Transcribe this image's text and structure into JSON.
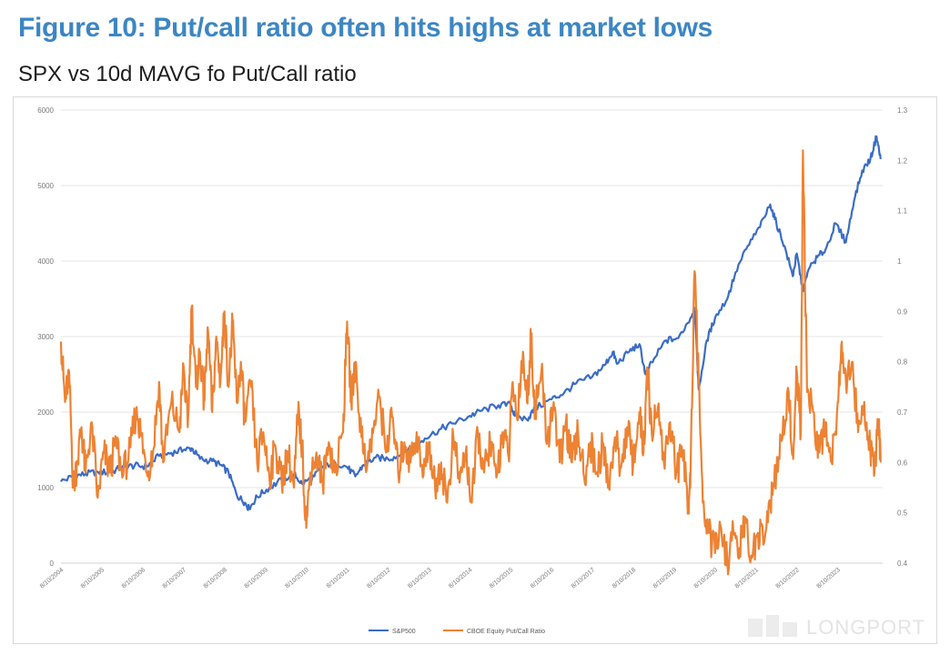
{
  "figure": {
    "title": "Figure 10: Put/call ratio often hits highs at market lows",
    "subtitle": "SPX vs 10d MAVG fo Put/Call ratio"
  },
  "watermark": {
    "text": "LONGPORT"
  },
  "chart_data": {
    "type": "line",
    "title": "",
    "grid": true,
    "legend_position": "bottom",
    "y_left": {
      "min": 0,
      "max": 6000,
      "ticks": [
        0,
        1000,
        2000,
        3000,
        4000,
        5000,
        6000
      ]
    },
    "y_right": {
      "min": 0.4,
      "max": 1.3,
      "ticks": [
        "0.4",
        "0.5",
        "0.6",
        "0.7",
        "0.8",
        "0.9",
        "1",
        "1.1",
        "1.2",
        "1.3"
      ]
    },
    "x_ticks": [
      "8/10/2004",
      "8/10/2005",
      "8/10/2006",
      "8/10/2007",
      "8/10/2008",
      "8/10/2009",
      "8/10/2010",
      "8/10/2011",
      "8/10/2012",
      "8/10/2013",
      "8/10/2014",
      "8/10/2015",
      "8/10/2016",
      "8/10/2017",
      "8/10/2018",
      "8/10/2019",
      "8/10/2020",
      "8/10/2021",
      "8/10/2022",
      "8/10/2023"
    ],
    "series": [
      {
        "name": "S&P500",
        "axis": "left",
        "color": "#3a6cc6",
        "points": [
          [
            2004.6,
            1080
          ],
          [
            2004.9,
            1150
          ],
          [
            2005.2,
            1180
          ],
          [
            2005.5,
            1210
          ],
          [
            2005.8,
            1200
          ],
          [
            2006.1,
            1270
          ],
          [
            2006.4,
            1290
          ],
          [
            2006.7,
            1280
          ],
          [
            2007.0,
            1420
          ],
          [
            2007.3,
            1460
          ],
          [
            2007.6,
            1500
          ],
          [
            2007.8,
            1520
          ],
          [
            2008.0,
            1380
          ],
          [
            2008.3,
            1350
          ],
          [
            2008.5,
            1300
          ],
          [
            2008.7,
            1200
          ],
          [
            2008.9,
            900
          ],
          [
            2009.1,
            800
          ],
          [
            2009.2,
            720
          ],
          [
            2009.4,
            880
          ],
          [
            2009.7,
            1000
          ],
          [
            2010.0,
            1100
          ],
          [
            2010.3,
            1180
          ],
          [
            2010.5,
            1050
          ],
          [
            2010.8,
            1150
          ],
          [
            2011.0,
            1280
          ],
          [
            2011.3,
            1340
          ],
          [
            2011.6,
            1270
          ],
          [
            2011.8,
            1150
          ],
          [
            2012.0,
            1300
          ],
          [
            2012.3,
            1400
          ],
          [
            2012.6,
            1380
          ],
          [
            2012.9,
            1430
          ],
          [
            2013.2,
            1550
          ],
          [
            2013.5,
            1650
          ],
          [
            2013.9,
            1780
          ],
          [
            2014.2,
            1850
          ],
          [
            2014.6,
            1950
          ],
          [
            2014.9,
            2020
          ],
          [
            2015.3,
            2090
          ],
          [
            2015.6,
            2100
          ],
          [
            2015.7,
            1950
          ],
          [
            2016.0,
            1900
          ],
          [
            2016.2,
            2050
          ],
          [
            2016.6,
            2170
          ],
          [
            2016.9,
            2250
          ],
          [
            2017.2,
            2380
          ],
          [
            2017.6,
            2470
          ],
          [
            2017.9,
            2620
          ],
          [
            2018.1,
            2800
          ],
          [
            2018.2,
            2640
          ],
          [
            2018.5,
            2800
          ],
          [
            2018.75,
            2900
          ],
          [
            2018.9,
            2500
          ],
          [
            2019.1,
            2700
          ],
          [
            2019.4,
            2950
          ],
          [
            2019.7,
            2980
          ],
          [
            2020.0,
            3250
          ],
          [
            2020.1,
            3380
          ],
          [
            2020.2,
            2300
          ],
          [
            2020.4,
            2950
          ],
          [
            2020.6,
            3250
          ],
          [
            2020.9,
            3500
          ],
          [
            2021.1,
            3850
          ],
          [
            2021.4,
            4200
          ],
          [
            2021.7,
            4450
          ],
          [
            2021.95,
            4750
          ],
          [
            2022.1,
            4500
          ],
          [
            2022.3,
            4200
          ],
          [
            2022.5,
            3800
          ],
          [
            2022.6,
            4100
          ],
          [
            2022.75,
            3600
          ],
          [
            2022.9,
            3900
          ],
          [
            2023.1,
            4050
          ],
          [
            2023.3,
            4150
          ],
          [
            2023.55,
            4500
          ],
          [
            2023.8,
            4250
          ],
          [
            2024.0,
            4800
          ],
          [
            2024.2,
            5200
          ],
          [
            2024.4,
            5350
          ],
          [
            2024.55,
            5650
          ],
          [
            2024.65,
            5350
          ]
        ]
      },
      {
        "name": "CBOE Equity Put/Call Ratio",
        "axis": "right",
        "color": "#ed8233",
        "points": [
          [
            2004.6,
            0.84
          ],
          [
            2004.7,
            0.72
          ],
          [
            2004.8,
            0.78
          ],
          [
            2004.9,
            0.55
          ],
          [
            2005.0,
            0.6
          ],
          [
            2005.1,
            0.67
          ],
          [
            2005.2,
            0.58
          ],
          [
            2005.35,
            0.68
          ],
          [
            2005.5,
            0.53
          ],
          [
            2005.65,
            0.62
          ],
          [
            2005.8,
            0.58
          ],
          [
            2005.95,
            0.65
          ],
          [
            2006.1,
            0.57
          ],
          [
            2006.3,
            0.63
          ],
          [
            2006.45,
            0.71
          ],
          [
            2006.55,
            0.66
          ],
          [
            2006.7,
            0.58
          ],
          [
            2006.85,
            0.62
          ],
          [
            2007.0,
            0.76
          ],
          [
            2007.1,
            0.6
          ],
          [
            2007.3,
            0.72
          ],
          [
            2007.5,
            0.66
          ],
          [
            2007.6,
            0.79
          ],
          [
            2007.7,
            0.67
          ],
          [
            2007.8,
            0.91
          ],
          [
            2007.9,
            0.75
          ],
          [
            2008.0,
            0.82
          ],
          [
            2008.1,
            0.72
          ],
          [
            2008.2,
            0.86
          ],
          [
            2008.3,
            0.7
          ],
          [
            2008.4,
            0.85
          ],
          [
            2008.5,
            0.76
          ],
          [
            2008.6,
            0.9
          ],
          [
            2008.7,
            0.75
          ],
          [
            2008.8,
            0.88
          ],
          [
            2008.9,
            0.72
          ],
          [
            2009.0,
            0.8
          ],
          [
            2009.1,
            0.68
          ],
          [
            2009.25,
            0.75
          ],
          [
            2009.4,
            0.6
          ],
          [
            2009.55,
            0.66
          ],
          [
            2009.7,
            0.57
          ],
          [
            2009.85,
            0.63
          ],
          [
            2010.0,
            0.56
          ],
          [
            2010.15,
            0.62
          ],
          [
            2010.3,
            0.55
          ],
          [
            2010.4,
            0.7
          ],
          [
            2010.5,
            0.63
          ],
          [
            2010.6,
            0.47
          ],
          [
            2010.7,
            0.58
          ],
          [
            2010.85,
            0.62
          ],
          [
            2011.0,
            0.56
          ],
          [
            2011.15,
            0.64
          ],
          [
            2011.3,
            0.58
          ],
          [
            2011.5,
            0.66
          ],
          [
            2011.6,
            0.88
          ],
          [
            2011.7,
            0.72
          ],
          [
            2011.8,
            0.8
          ],
          [
            2011.95,
            0.65
          ],
          [
            2012.1,
            0.6
          ],
          [
            2012.25,
            0.67
          ],
          [
            2012.4,
            0.73
          ],
          [
            2012.55,
            0.62
          ],
          [
            2012.7,
            0.69
          ],
          [
            2012.85,
            0.58
          ],
          [
            2013.0,
            0.64
          ],
          [
            2013.15,
            0.6
          ],
          [
            2013.3,
            0.66
          ],
          [
            2013.45,
            0.57
          ],
          [
            2013.6,
            0.64
          ],
          [
            2013.75,
            0.55
          ],
          [
            2013.9,
            0.6
          ],
          [
            2014.05,
            0.52
          ],
          [
            2014.2,
            0.65
          ],
          [
            2014.35,
            0.56
          ],
          [
            2014.5,
            0.62
          ],
          [
            2014.65,
            0.52
          ],
          [
            2014.8,
            0.66
          ],
          [
            2014.95,
            0.58
          ],
          [
            2015.1,
            0.64
          ],
          [
            2015.25,
            0.57
          ],
          [
            2015.4,
            0.66
          ],
          [
            2015.55,
            0.61
          ],
          [
            2015.65,
            0.76
          ],
          [
            2015.75,
            0.69
          ],
          [
            2015.9,
            0.82
          ],
          [
            2016.0,
            0.72
          ],
          [
            2016.1,
            0.85
          ],
          [
            2016.2,
            0.7
          ],
          [
            2016.35,
            0.78
          ],
          [
            2016.5,
            0.64
          ],
          [
            2016.65,
            0.72
          ],
          [
            2016.8,
            0.6
          ],
          [
            2016.95,
            0.68
          ],
          [
            2017.1,
            0.6
          ],
          [
            2017.25,
            0.66
          ],
          [
            2017.4,
            0.57
          ],
          [
            2017.55,
            0.64
          ],
          [
            2017.7,
            0.58
          ],
          [
            2017.85,
            0.63
          ],
          [
            2018.0,
            0.56
          ],
          [
            2018.15,
            0.65
          ],
          [
            2018.3,
            0.59
          ],
          [
            2018.45,
            0.67
          ],
          [
            2018.6,
            0.6
          ],
          [
            2018.75,
            0.7
          ],
          [
            2018.85,
            0.62
          ],
          [
            2018.95,
            0.78
          ],
          [
            2019.05,
            0.66
          ],
          [
            2019.2,
            0.71
          ],
          [
            2019.35,
            0.6
          ],
          [
            2019.5,
            0.68
          ],
          [
            2019.65,
            0.58
          ],
          [
            2019.8,
            0.62
          ],
          [
            2019.95,
            0.52
          ],
          [
            2020.0,
            0.58
          ],
          [
            2020.1,
            0.98
          ],
          [
            2020.2,
            0.76
          ],
          [
            2020.3,
            0.52
          ],
          [
            2020.45,
            0.46
          ],
          [
            2020.6,
            0.42
          ],
          [
            2020.75,
            0.47
          ],
          [
            2020.9,
            0.4
          ],
          [
            2021.05,
            0.46
          ],
          [
            2021.2,
            0.43
          ],
          [
            2021.35,
            0.48
          ],
          [
            2021.5,
            0.41
          ],
          [
            2021.65,
            0.46
          ],
          [
            2021.8,
            0.44
          ],
          [
            2021.95,
            0.52
          ],
          [
            2022.1,
            0.58
          ],
          [
            2022.25,
            0.65
          ],
          [
            2022.4,
            0.74
          ],
          [
            2022.5,
            0.62
          ],
          [
            2022.6,
            0.78
          ],
          [
            2022.7,
            0.66
          ],
          [
            2022.75,
            1.22
          ],
          [
            2022.85,
            0.74
          ],
          [
            2023.0,
            0.7
          ],
          [
            2023.15,
            0.62
          ],
          [
            2023.3,
            0.68
          ],
          [
            2023.45,
            0.6
          ],
          [
            2023.6,
            0.72
          ],
          [
            2023.7,
            0.84
          ],
          [
            2023.8,
            0.76
          ],
          [
            2023.95,
            0.8
          ],
          [
            2024.1,
            0.66
          ],
          [
            2024.25,
            0.72
          ],
          [
            2024.4,
            0.62
          ],
          [
            2024.5,
            0.58
          ],
          [
            2024.6,
            0.68
          ],
          [
            2024.65,
            0.6
          ]
        ]
      }
    ]
  }
}
